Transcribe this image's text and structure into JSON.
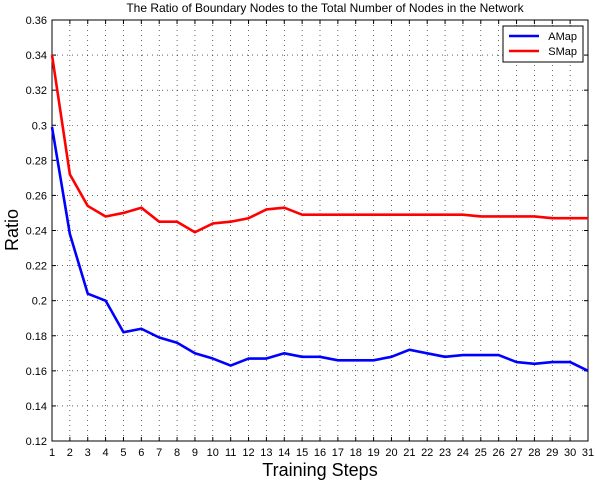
{
  "chart_data": {
    "type": "line",
    "title": "The Ratio of Boundary Nodes to the Total Number of Nodes in the Network",
    "xlabel": "Training Steps",
    "ylabel": "Ratio",
    "xlim": [
      1,
      31
    ],
    "ylim": [
      0.12,
      0.36
    ],
    "xticks": [
      "1",
      "2",
      "3",
      "4",
      "5",
      "6",
      "7",
      "8",
      "9",
      "10",
      "11",
      "12",
      "13",
      "14",
      "15",
      "16",
      "17",
      "18",
      "19",
      "20",
      "21",
      "22",
      "23",
      "24",
      "25",
      "26",
      "27",
      "28",
      "29",
      "30",
      "31"
    ],
    "yticks": [
      "0.12",
      "0.14",
      "0.16",
      "0.18",
      "0.2",
      "0.22",
      "0.24",
      "0.26",
      "0.28",
      "0.3",
      "0.32",
      "0.34",
      "0.36"
    ],
    "grid": true,
    "legend_position": "top-right",
    "x": [
      1,
      2,
      3,
      4,
      5,
      6,
      7,
      8,
      9,
      10,
      11,
      12,
      13,
      14,
      15,
      16,
      17,
      18,
      19,
      20,
      21,
      22,
      23,
      24,
      25,
      26,
      27,
      28,
      29,
      30,
      31
    ],
    "series": [
      {
        "name": "AMap",
        "color": "#0000ff",
        "values": [
          0.299,
          0.238,
          0.204,
          0.2,
          0.182,
          0.184,
          0.179,
          0.176,
          0.17,
          0.167,
          0.163,
          0.167,
          0.167,
          0.17,
          0.168,
          0.168,
          0.166,
          0.166,
          0.166,
          0.168,
          0.172,
          0.17,
          0.168,
          0.169,
          0.169,
          0.169,
          0.165,
          0.164,
          0.165,
          0.165,
          0.16
        ]
      },
      {
        "name": "SMap",
        "color": "#ff0000",
        "values": [
          0.34,
          0.272,
          0.254,
          0.248,
          0.25,
          0.253,
          0.245,
          0.245,
          0.239,
          0.244,
          0.245,
          0.247,
          0.252,
          0.253,
          0.249,
          0.249,
          0.249,
          0.249,
          0.249,
          0.249,
          0.249,
          0.249,
          0.249,
          0.249,
          0.248,
          0.248,
          0.248,
          0.248,
          0.247,
          0.247,
          0.247
        ]
      }
    ]
  }
}
